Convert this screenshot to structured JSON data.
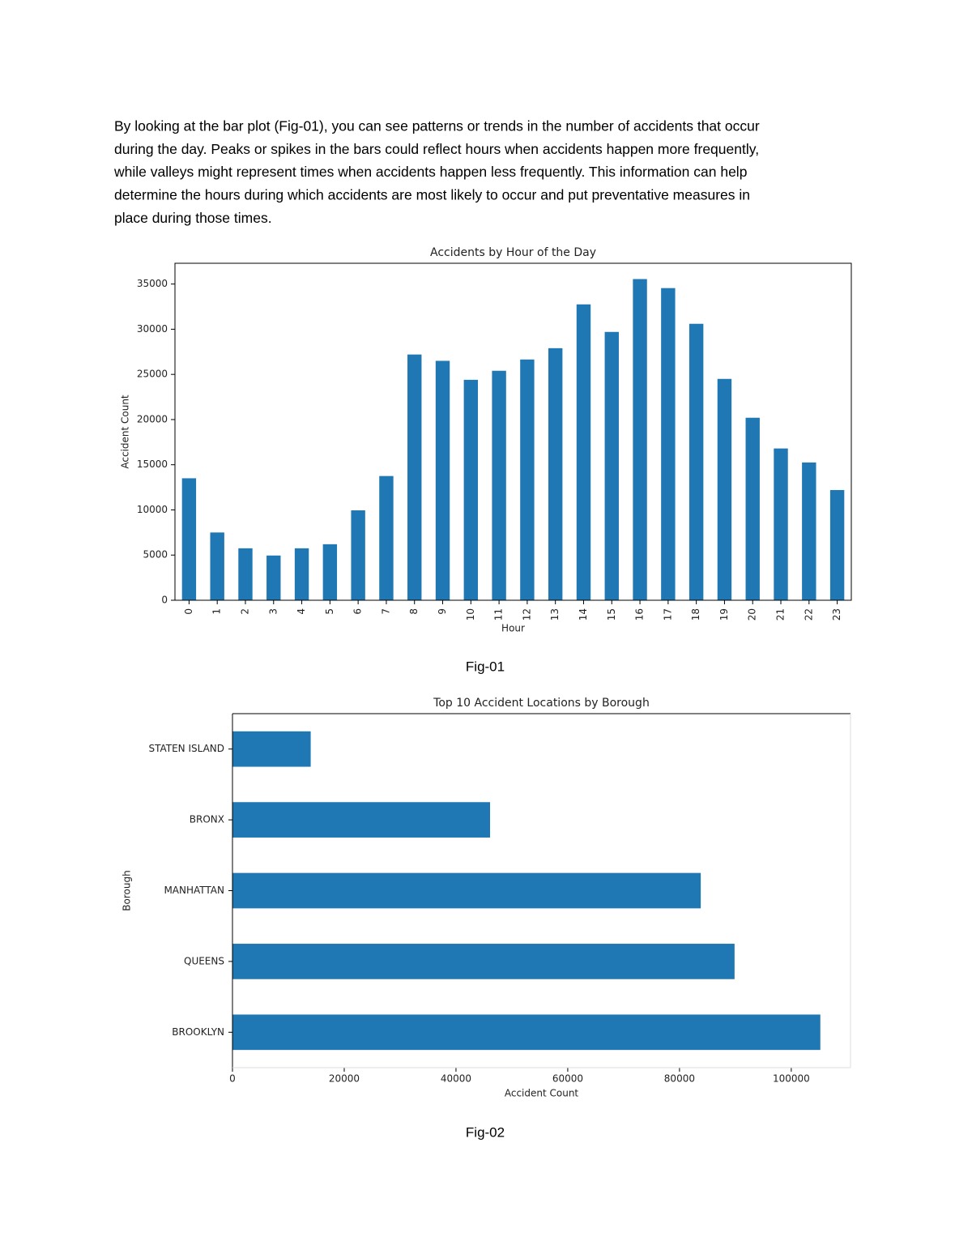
{
  "paragraph": [
    "By looking at the bar plot (Fig-01), you can see patterns or trends in the number of accidents that occur",
    "during the day. Peaks or spikes in the bars could reflect hours when accidents happen more frequently,",
    "while valleys might represent times when accidents happen less frequently. This information can help",
    "determine the hours during which accidents are most likely to occur and put preventative measures in",
    "place during those times."
  ],
  "captions": [
    "Fig-01",
    "Fig-02"
  ],
  "chart_data": [
    {
      "type": "bar",
      "title": "Accidents by Hour of the Day",
      "x_label": "Hour",
      "y_label": "Accident Count",
      "categories": [
        "0",
        "1",
        "2",
        "3",
        "4",
        "5",
        "6",
        "7",
        "8",
        "9",
        "10",
        "11",
        "12",
        "13",
        "14",
        "15",
        "16",
        "17",
        "18",
        "19",
        "20",
        "21",
        "22",
        "23"
      ],
      "values": [
        13500,
        7500,
        5750,
        4950,
        5750,
        6200,
        9950,
        13750,
        27200,
        26500,
        24400,
        25400,
        26650,
        27900,
        32750,
        29700,
        35550,
        34550,
        30600,
        24500,
        20200,
        16800,
        15250,
        12200
      ],
      "color": "#1f77b4",
      "ylim": [
        0,
        37300
      ],
      "yticks": [
        0,
        5000,
        10000,
        15000,
        20000,
        25000,
        30000,
        35000
      ],
      "grid": false
    },
    {
      "type": "barh",
      "title": "Top 10 Accident Locations by Borough",
      "x_label": "Accident Count",
      "y_label": "Borough",
      "categories": [
        "BROOKLYN",
        "QUEENS",
        "MANHATTAN",
        "BRONX",
        "STATEN ISLAND"
      ],
      "values": [
        105200,
        89850,
        83800,
        46100,
        14000
      ],
      "color": "#1f77b4",
      "xlim": [
        0,
        110600
      ],
      "xticks": [
        0,
        20000,
        40000,
        60000,
        80000,
        100000
      ],
      "grid": false
    }
  ]
}
